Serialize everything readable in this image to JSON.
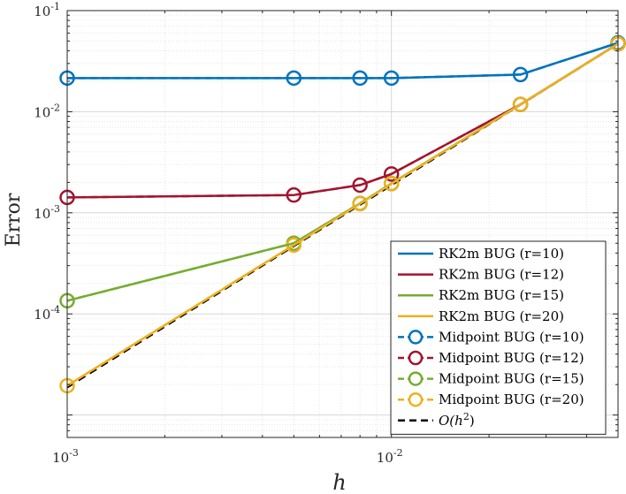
{
  "chart_data": {
    "type": "line",
    "xscale": "log",
    "yscale": "log",
    "xlabel": "h",
    "ylabel": "Error",
    "xlim": [
      0.001,
      0.05
    ],
    "ylim": [
      6e-06,
      0.1
    ],
    "grid": true,
    "legend_position": "bottom-right",
    "xticks": [
      {
        "base": "10",
        "exp": "-3",
        "value": 0.001
      },
      {
        "base": "10",
        "exp": "-2",
        "value": 0.01
      }
    ],
    "yticks": [
      {
        "base": "10",
        "exp": "-1",
        "value": 0.1
      },
      {
        "base": "10",
        "exp": "-2",
        "value": 0.01
      },
      {
        "base": "10",
        "exp": "-3",
        "value": 0.001
      },
      {
        "base": "10",
        "exp": "-4",
        "value": 0.0001
      }
    ],
    "series": [
      {
        "name": "RK2m BUG (r=10)",
        "color": "#0072BD",
        "style": "solid",
        "marker": "none",
        "x": [
          0.001,
          0.005,
          0.008,
          0.01,
          0.025,
          0.05
        ],
        "y": [
          0.0215,
          0.0215,
          0.0215,
          0.0215,
          0.0233,
          0.048
        ]
      },
      {
        "name": "RK2m BUG (r=12)",
        "color": "#A2142F",
        "style": "solid",
        "marker": "none",
        "x": [
          0.001,
          0.005,
          0.008,
          0.01,
          0.025,
          0.05
        ],
        "y": [
          0.00142,
          0.0015,
          0.00188,
          0.00242,
          0.0118,
          0.047
        ]
      },
      {
        "name": "RK2m BUG (r=15)",
        "color": "#77AC30",
        "style": "solid",
        "marker": "none",
        "x": [
          0.001,
          0.005,
          0.008,
          0.01,
          0.025,
          0.05
        ],
        "y": [
          0.000135,
          0.0005,
          0.00124,
          0.00195,
          0.0118,
          0.047
        ]
      },
      {
        "name": "RK2m BUG (r=20)",
        "color": "#EDB120",
        "style": "solid",
        "marker": "none",
        "x": [
          0.001,
          0.005,
          0.008,
          0.01,
          0.025,
          0.05
        ],
        "y": [
          1.95e-05,
          0.00048,
          0.00123,
          0.00194,
          0.0118,
          0.047
        ]
      },
      {
        "name": "Midpoint BUG (r=10)",
        "color": "#0072BD",
        "style": "dashed",
        "marker": "circle",
        "x": [
          0.001,
          0.005,
          0.008,
          0.01,
          0.025,
          0.05
        ],
        "y": [
          0.0215,
          0.0215,
          0.0215,
          0.0215,
          0.0233,
          0.048
        ]
      },
      {
        "name": "Midpoint BUG (r=12)",
        "color": "#A2142F",
        "style": "dashed",
        "marker": "circle",
        "x": [
          0.001,
          0.005,
          0.008,
          0.01,
          0.025,
          0.05
        ],
        "y": [
          0.00142,
          0.0015,
          0.00188,
          0.00242,
          0.0118,
          0.047
        ]
      },
      {
        "name": "Midpoint BUG (r=15)",
        "color": "#77AC30",
        "style": "dashed",
        "marker": "circle",
        "x": [
          0.001,
          0.005,
          0.008,
          0.01,
          0.025,
          0.05
        ],
        "y": [
          0.000135,
          0.0005,
          0.00124,
          0.00195,
          0.0118,
          0.047
        ]
      },
      {
        "name": "Midpoint BUG (r=20)",
        "color": "#EDB120",
        "style": "dashed",
        "marker": "circle",
        "x": [
          0.001,
          0.005,
          0.008,
          0.01,
          0.025,
          0.05
        ],
        "y": [
          1.95e-05,
          0.00048,
          0.00123,
          0.00194,
          0.0118,
          0.047
        ]
      },
      {
        "name": "O(h^2)",
        "color": "#000000",
        "style": "dashed",
        "marker": "none",
        "x": [
          0.001,
          0.05
        ],
        "y": [
          1.88e-05,
          0.047
        ]
      }
    ],
    "legend": [
      {
        "label": "RK2m BUG (r=10)",
        "color": "#0072BD",
        "style": "solid",
        "marker": "none"
      },
      {
        "label": "RK2m BUG (r=12)",
        "color": "#A2142F",
        "style": "solid",
        "marker": "none"
      },
      {
        "label": "RK2m BUG (r=15)",
        "color": "#77AC30",
        "style": "solid",
        "marker": "none"
      },
      {
        "label": "RK2m BUG (r=20)",
        "color": "#EDB120",
        "style": "solid",
        "marker": "none"
      },
      {
        "label": "Midpoint BUG (r=10)",
        "color": "#0072BD",
        "style": "dashed",
        "marker": "circle"
      },
      {
        "label": "Midpoint BUG (r=12)",
        "color": "#A2142F",
        "style": "dashed",
        "marker": "circle"
      },
      {
        "label": "Midpoint BUG (r=15)",
        "color": "#77AC30",
        "style": "dashed",
        "marker": "circle"
      },
      {
        "label": "Midpoint BUG (r=20)",
        "color": "#EDB120",
        "style": "dashed",
        "marker": "circle"
      },
      {
        "label": "O(h^2)",
        "color": "#000000",
        "style": "dashed",
        "marker": "none",
        "math": {
          "main": "O(h",
          "sup": "2",
          "close": ")"
        }
      }
    ]
  }
}
